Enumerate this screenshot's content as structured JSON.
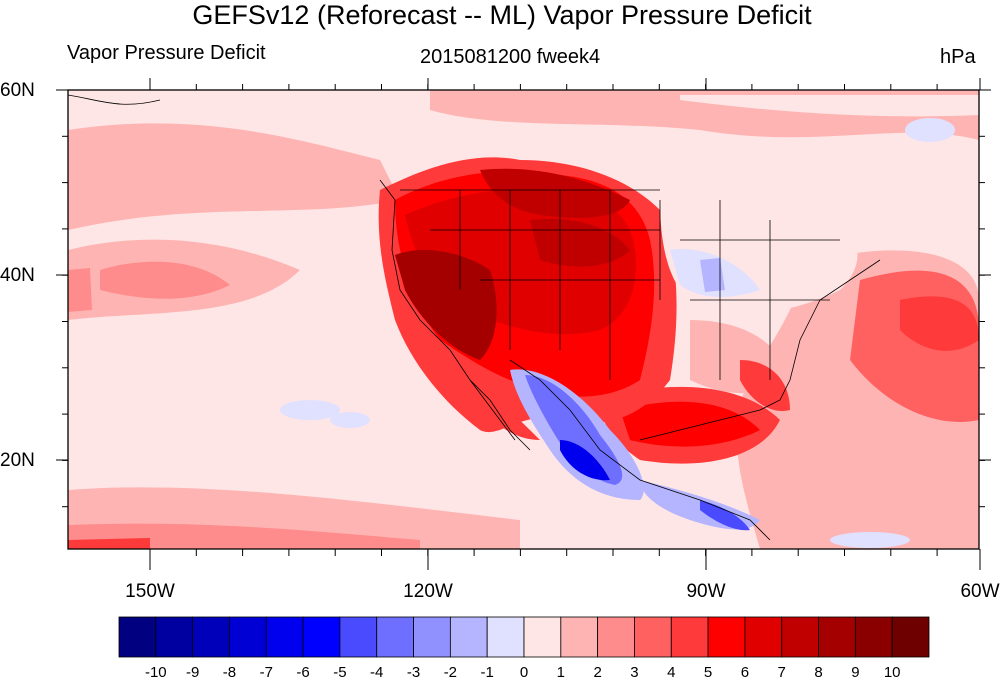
{
  "title": "GEFSv12 (Reforecast -- ML) Vapor Pressure Deficit",
  "left_label": "Vapor Pressure Deficit",
  "center_label": "2015081200 fweek4",
  "right_label": "hPa",
  "lat_labels": [
    "60N",
    "40N",
    "20N"
  ],
  "lon_labels": [
    "150W",
    "120W",
    "90W",
    "60W"
  ],
  "colorbar": {
    "labels": [
      "-10",
      "-9",
      "-8",
      "-7",
      "-6",
      "-5",
      "-4",
      "-3",
      "-2",
      "-1",
      "0",
      "1",
      "2",
      "3",
      "4",
      "5",
      "6",
      "7",
      "8",
      "9",
      "10"
    ],
    "colors": [
      "#000080",
      "#0000a0",
      "#0000bb",
      "#0000d4",
      "#0000ee",
      "#0000ff",
      "#4a4aff",
      "#6f6fff",
      "#9090ff",
      "#b4b4ff",
      "#e0e0ff",
      "#ffe6e6",
      "#ffb4b4",
      "#ff8c8c",
      "#ff6060",
      "#ff3a3a",
      "#ff0000",
      "#e00000",
      "#c00000",
      "#a40000",
      "#8a0000",
      "#6e0000"
    ]
  }
}
